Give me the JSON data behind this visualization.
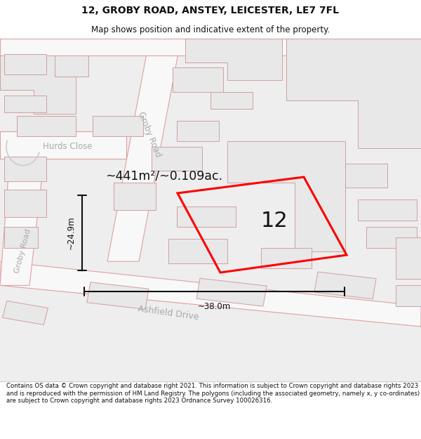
{
  "title_line1": "12, GROBY ROAD, ANSTEY, LEICESTER, LE7 7FL",
  "title_line2": "Map shows position and indicative extent of the property.",
  "footer_text": "Contains OS data © Crown copyright and database right 2021. This information is subject to Crown copyright and database rights 2023 and is reproduced with the permission of HM Land Registry. The polygons (including the associated geometry, namely x, y co-ordinates) are subject to Crown copyright and database rights 2023 Ordnance Survey 100026316.",
  "area_label": "~441m²/~0.109ac.",
  "property_number": "12",
  "dim_width": "~38.0m",
  "dim_height": "~24.9m",
  "road_label_groby_top": "Groby Road",
  "road_label_groby_bottom": "Groby Road",
  "road_label_ashfield": "Ashfield Drive",
  "road_label_hurds": "Hurds Close",
  "bg_color": "#ffffff",
  "map_bg_color": "#eeeeee",
  "building_fill": "#e8e8e8",
  "building_edge": "#d0a0a0",
  "road_edge": "#e0a0a0",
  "road_fill": "#f8f8f8",
  "property_stroke": "#ff0000",
  "dim_color": "#111111",
  "road_text_color": "#aaaaaa",
  "label_color": "#111111"
}
